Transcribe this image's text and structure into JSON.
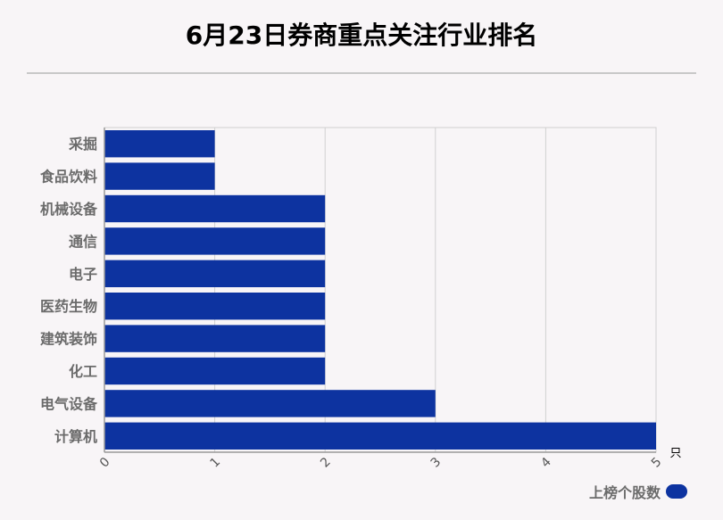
{
  "title": "6月23日券商重点关注行业排名",
  "chart_data": {
    "type": "bar",
    "orientation": "horizontal",
    "title": "6月23日券商重点关注行业排名",
    "categories": [
      "采掘",
      "食品饮料",
      "机械设备",
      "通信",
      "电子",
      "医药生物",
      "建筑装饰",
      "化工",
      "电气设备",
      "计算机"
    ],
    "series": [
      {
        "name": "上榜个股数",
        "values": [
          1,
          1,
          2,
          2,
          2,
          2,
          2,
          2,
          3,
          5
        ]
      }
    ],
    "xlim": [
      0,
      5
    ],
    "xticks": [
      "0",
      "1",
      "2",
      "3",
      "4",
      "5"
    ],
    "xunit": "只",
    "grid": true,
    "legend_position": "bottom-right",
    "bar_color": "#0d33a0"
  }
}
